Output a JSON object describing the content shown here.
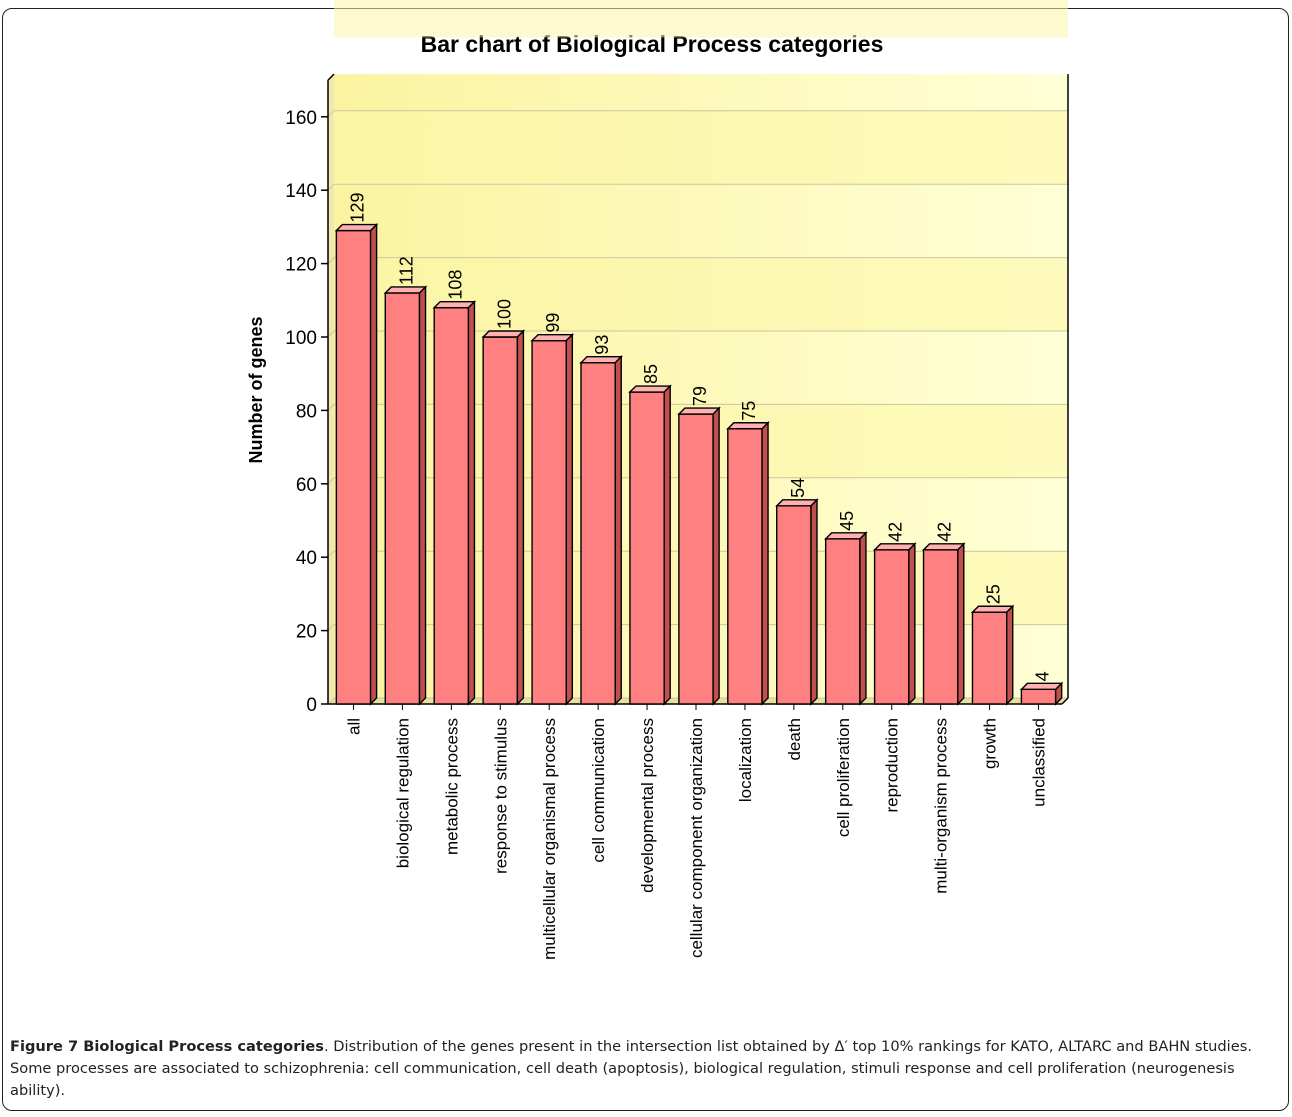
{
  "chart_data": {
    "type": "bar",
    "title": "Bar chart of Biological Process categories",
    "xlabel": "",
    "ylabel": "Number of genes",
    "ylim": [
      0,
      170
    ],
    "yticks": [
      0,
      20,
      40,
      60,
      80,
      100,
      120,
      140,
      160
    ],
    "grid": true,
    "categories": [
      "all",
      "biological regulation",
      "metabolic process",
      "response to stimulus",
      "multicellular organismal process",
      "cell communication",
      "developmental process",
      "cellular component organization",
      "localization",
      "death",
      "cell proliferation",
      "reproduction",
      "multi-organism process",
      "growth",
      "unclassified"
    ],
    "values": [
      129,
      112,
      108,
      100,
      99,
      93,
      85,
      79,
      75,
      54,
      45,
      42,
      42,
      25,
      4
    ],
    "value_labels": [
      "129",
      "112",
      "108",
      "100",
      "99",
      "93",
      "85",
      "79",
      "75",
      "54",
      "45",
      "42",
      "42",
      "25",
      "4"
    ],
    "colors": {
      "bar_front": "#ff8080",
      "bar_top": "#ffb0b0",
      "bar_side": "#c05050",
      "plot_bg_light": "#ffffd0",
      "plot_bg_dark": "#fcf5a8",
      "gridline": "#c8c8a0"
    }
  },
  "caption": {
    "label": "Figure 7 Biological Process categories",
    "text": ". Distribution of the genes present in the intersection list obtained by Δ′ top 10% rankings for KATO, ALTARC and BAHN studies. Some processes are associated to schizophrenia: cell communication, cell death (apoptosis), biological regulation, stimuli response and cell proliferation (neurogenesis ability)."
  }
}
